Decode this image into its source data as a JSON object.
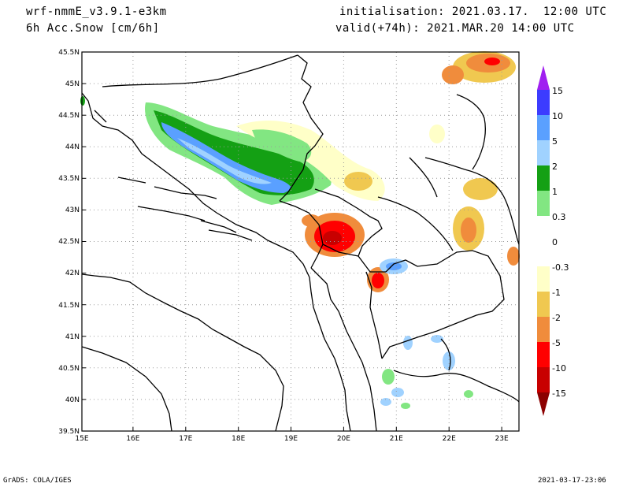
{
  "header": {
    "model": "wrf-nmmE_v3.9.1-e3km",
    "field": "6h Acc.Snow [cm/6h]",
    "init": "initialisation: 2021.03.17.  12:00 UTC",
    "valid": "valid(+74h): 2021.MAR.20 14:00 UTC"
  },
  "footer": {
    "left": "GrADS: COLA/IGES",
    "right": "2021-03-17-23:06"
  },
  "map": {
    "lat_labels": [
      "45.5N",
      "45N",
      "44.5N",
      "44N",
      "43.5N",
      "43N",
      "42.5N",
      "42N",
      "41.5N",
      "41N",
      "40.5N",
      "40N",
      "39.5N"
    ],
    "lon_labels": [
      "15E",
      "16E",
      "17E",
      "18E",
      "19E",
      "20E",
      "21E",
      "22E",
      "23E"
    ],
    "lat_range": [
      39.5,
      45.5
    ],
    "lon_range": [
      15,
      23.3
    ],
    "grid": "dotted"
  },
  "colorbar": {
    "levels": [
      "15",
      "10",
      "5",
      "2",
      "1",
      "0.3",
      "0",
      "-0.3",
      "-1",
      "-2",
      "-5",
      "-10",
      "-15"
    ],
    "colors": [
      "#a020f0",
      "#3c3cff",
      "#5aa0ff",
      "#a0d2ff",
      "#14a014",
      "#82e682",
      "#ffffff",
      "#ffffc8",
      "#f0c850",
      "#f08c3c",
      "#ff0000",
      "#c80000",
      "#8c0000"
    ]
  }
}
